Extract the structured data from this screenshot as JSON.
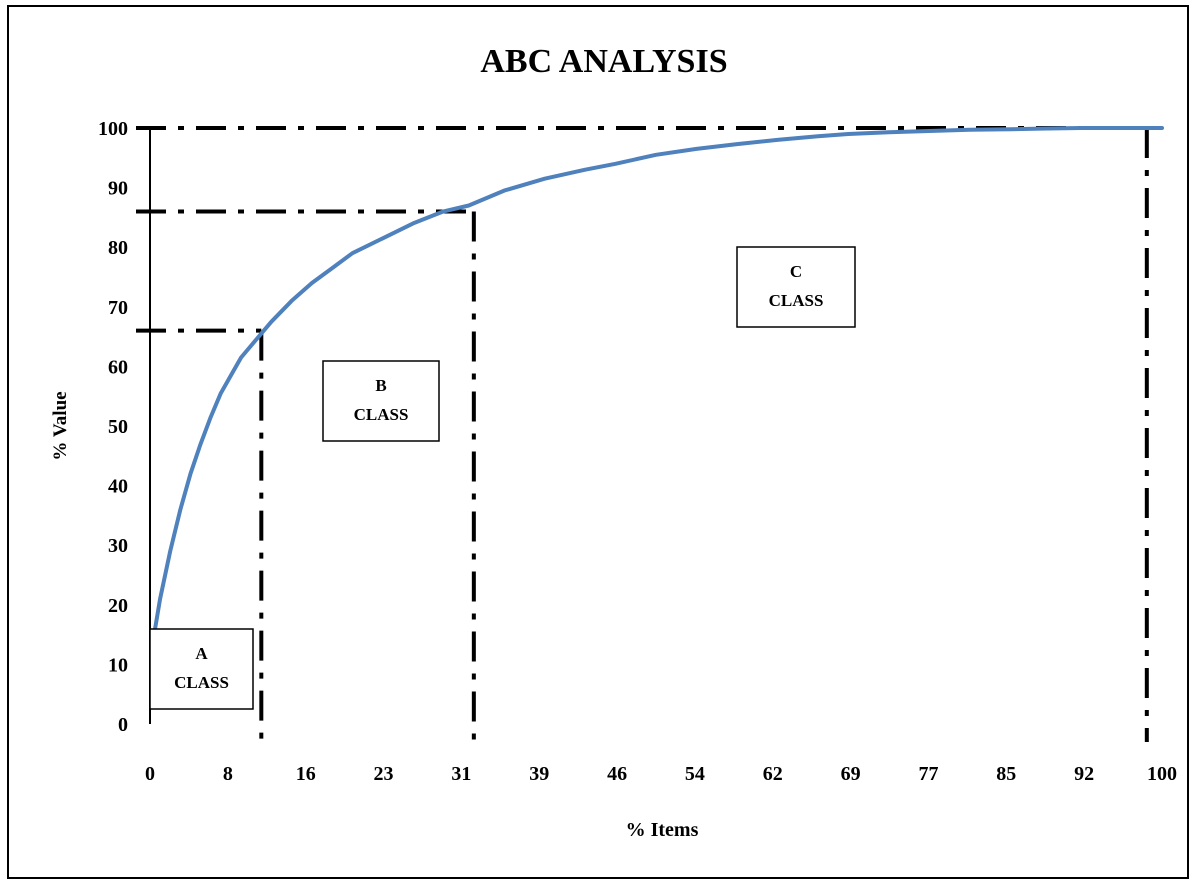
{
  "chart_data": {
    "type": "line",
    "title": "ABC ANALYSIS",
    "xlabel": "% Items",
    "ylabel": "% Value",
    "xlim": [
      0,
      100
    ],
    "ylim": [
      0,
      100
    ],
    "x_tick_labels": [
      "0",
      "8",
      "16",
      "23",
      "31",
      "39",
      "46",
      "54",
      "62",
      "69",
      "77",
      "85",
      "92",
      "100"
    ],
    "y_tick_labels": [
      "0",
      "10",
      "20",
      "30",
      "40",
      "50",
      "60",
      "70",
      "80",
      "90",
      "100"
    ],
    "grid": false,
    "colors": {
      "curve": "#4f81bd",
      "axis": "#000000",
      "threshold": "#000000"
    },
    "series": [
      {
        "x": [
          0.5,
          1,
          2,
          3,
          4,
          5,
          6,
          7,
          8,
          9,
          10,
          11,
          12,
          14,
          16,
          18,
          20,
          23,
          26,
          29,
          31.5,
          35,
          39,
          43,
          46,
          50,
          54,
          58,
          62,
          66,
          69,
          73,
          77,
          81,
          85,
          88,
          92,
          96,
          100
        ],
        "y": [
          16,
          21,
          29,
          36,
          42,
          47,
          51.5,
          55.5,
          58.5,
          61.5,
          63.5,
          65.5,
          67.5,
          71,
          74,
          76.5,
          79,
          81.5,
          84,
          86,
          87,
          89.5,
          91.5,
          93,
          94,
          95.5,
          96.5,
          97.3,
          98,
          98.6,
          99,
          99.3,
          99.5,
          99.7,
          99.8,
          99.9,
          100,
          100,
          100
        ]
      }
    ],
    "thresholds": {
      "a": {
        "x": 11,
        "y": 66
      },
      "b": {
        "x": 32,
        "y": 86
      },
      "c": {
        "x": 98.5,
        "y": 100
      }
    },
    "annotations": [
      {
        "id": "a",
        "line1": "A",
        "line2": "CLASS"
      },
      {
        "id": "b",
        "line1": "B",
        "line2": "CLASS"
      },
      {
        "id": "c",
        "line1": "C",
        "line2": "CLASS"
      }
    ]
  }
}
